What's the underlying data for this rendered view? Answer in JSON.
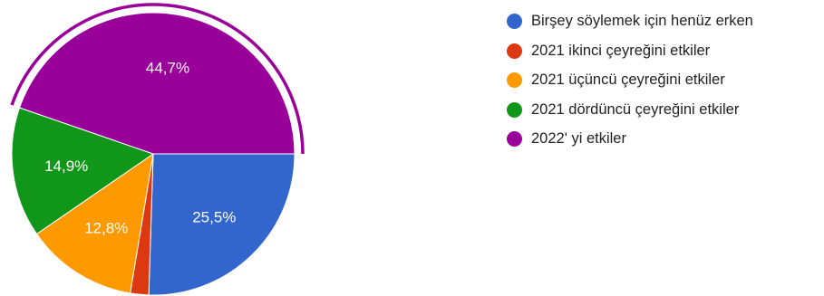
{
  "chart_data": {
    "type": "pie",
    "title": "",
    "categories": [
      "Birşey söylemek için henüz erken",
      "2021 ikinci çeyreğini etkiler",
      "2021 üçüncü çeyreğini etkiler",
      "2021 dördüncü çeyreğini etkiler",
      "2022' yi etkiler"
    ],
    "values": [
      25.5,
      2.1,
      12.8,
      14.9,
      44.7
    ],
    "data_labels": [
      "25,5%",
      "",
      "12,8%",
      "14,9%",
      "44,7%"
    ],
    "colors": [
      "#3366cc",
      "#dc3912",
      "#ff9900",
      "#109618",
      "#990099"
    ],
    "highlighted_slice": "2022' yi etkiler",
    "legend_position": "right",
    "start_angle": "3 o'clock, clockwise"
  }
}
